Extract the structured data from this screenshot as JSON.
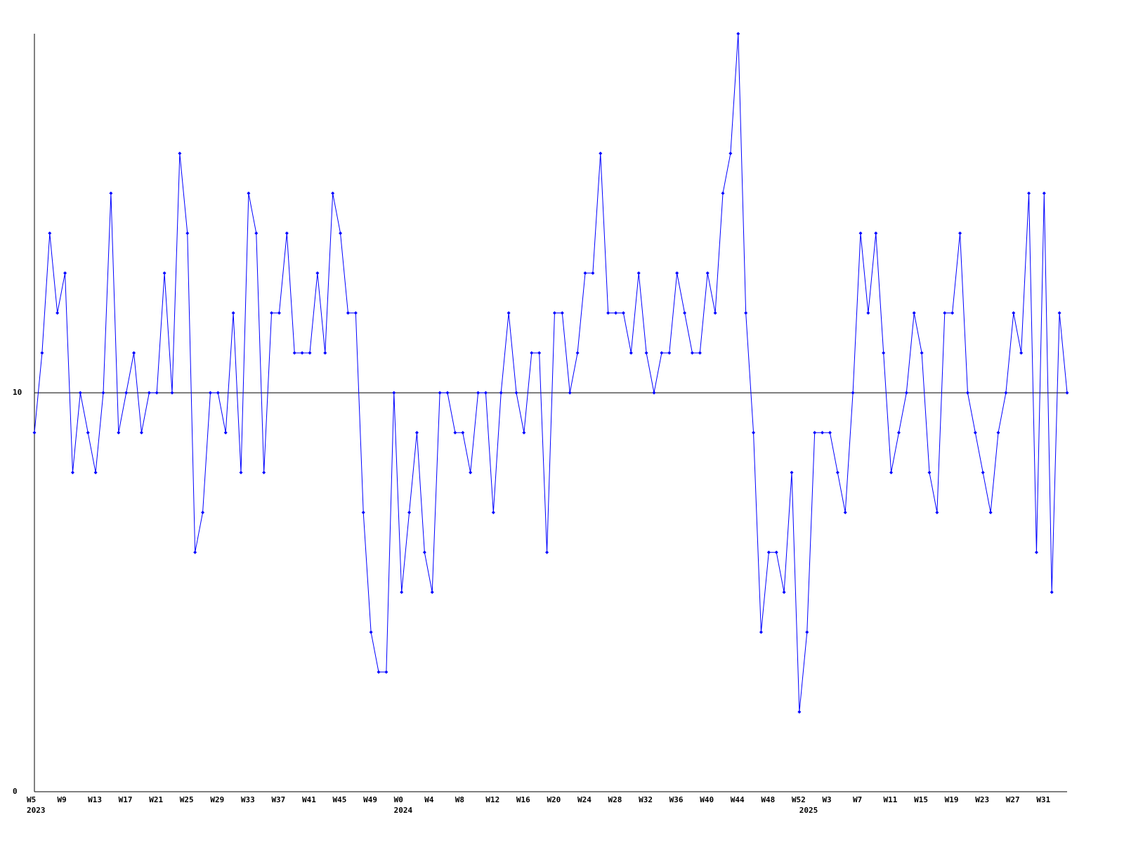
{
  "chart_data": {
    "type": "line",
    "categories": [
      "W5",
      null,
      null,
      null,
      "W9",
      null,
      null,
      null,
      "W13",
      null,
      null,
      null,
      "W17",
      null,
      null,
      null,
      "W21",
      null,
      null,
      null,
      "W25",
      null,
      null,
      null,
      "W29",
      null,
      null,
      null,
      "W33",
      null,
      null,
      null,
      "W37",
      null,
      null,
      null,
      "W41",
      null,
      null,
      null,
      "W45",
      null,
      null,
      null,
      "W49",
      null,
      null,
      null,
      "W0",
      null,
      null,
      null,
      "W4",
      null,
      null,
      null,
      "W8",
      null,
      null,
      null,
      "W12",
      null,
      null,
      null,
      "W16",
      null,
      null,
      null,
      "W20",
      null,
      null,
      null,
      "W24",
      null,
      null,
      null,
      "W28",
      null,
      null,
      null,
      "W32",
      null,
      null,
      null,
      "W36",
      null,
      null,
      null,
      "W40",
      null,
      null,
      null,
      "W44",
      null,
      null,
      null,
      "W48",
      null,
      null,
      null,
      "W52",
      null,
      null,
      null,
      "W3",
      null,
      null,
      null,
      "W7",
      null,
      null,
      null,
      "W11",
      null,
      null,
      null,
      "W15",
      null,
      null,
      null,
      "W19",
      null,
      null,
      null,
      "W23",
      null,
      null,
      null,
      "W27",
      null,
      null,
      null,
      "W31",
      null,
      null,
      null
    ],
    "year_labels": [
      "2023",
      null,
      null,
      null,
      null,
      null,
      null,
      null,
      null,
      null,
      null,
      null,
      null,
      null,
      null,
      null,
      null,
      null,
      null,
      null,
      null,
      null,
      null,
      null,
      null,
      null,
      null,
      null,
      null,
      null,
      null,
      null,
      null,
      null,
      null,
      null,
      null,
      null,
      null,
      null,
      null,
      null,
      null,
      null,
      null,
      null,
      null,
      null,
      "2024",
      null,
      null,
      null,
      null,
      null,
      null,
      null,
      null,
      null,
      null,
      null,
      null,
      null,
      null,
      null,
      null,
      null,
      null,
      null,
      null,
      null,
      null,
      null,
      null,
      null,
      null,
      null,
      null,
      null,
      null,
      null,
      null,
      null,
      null,
      null,
      null,
      null,
      null,
      null,
      null,
      null,
      null,
      null,
      null,
      null,
      null,
      null,
      null,
      null,
      null,
      null,
      null,
      "2025",
      null,
      null,
      null,
      null,
      null,
      null,
      null,
      null,
      null,
      null,
      null,
      null,
      null,
      null,
      null,
      null,
      null,
      null,
      null,
      null,
      null,
      null,
      null,
      null,
      null,
      null,
      null,
      null,
      null,
      null,
      null,
      null,
      null,
      null
    ],
    "values": [
      9,
      11,
      14,
      12,
      13,
      8,
      10,
      9,
      8,
      10,
      15,
      9,
      10,
      11,
      9,
      10,
      10,
      13,
      10,
      16,
      14,
      6,
      7,
      10,
      10,
      9,
      12,
      8,
      15,
      14,
      8,
      12,
      12,
      14,
      11,
      11,
      11,
      13,
      11,
      15,
      14,
      12,
      12,
      7,
      4,
      3,
      3,
      10,
      5,
      7,
      9,
      6,
      5,
      10,
      10,
      9,
      9,
      8,
      10,
      10,
      7,
      10,
      12,
      10,
      9,
      11,
      11,
      6,
      12,
      12,
      10,
      11,
      13,
      13,
      16,
      12,
      12,
      12,
      11,
      13,
      11,
      10,
      11,
      11,
      13,
      12,
      11,
      11,
      13,
      12,
      15,
      16,
      19,
      12,
      9,
      4,
      6,
      6,
      5,
      8,
      2,
      4,
      9,
      9,
      9,
      8,
      7,
      10,
      14,
      12,
      14,
      11,
      8,
      9,
      10,
      12,
      11,
      8,
      7,
      12,
      12,
      14,
      10,
      9,
      8,
      7,
      9,
      10,
      12,
      11,
      15,
      6,
      15,
      5,
      12,
      10
    ],
    "color": "#0000ff",
    "ylim": [
      0,
      19
    ],
    "yticks": [
      0,
      10
    ],
    "grid": true
  }
}
